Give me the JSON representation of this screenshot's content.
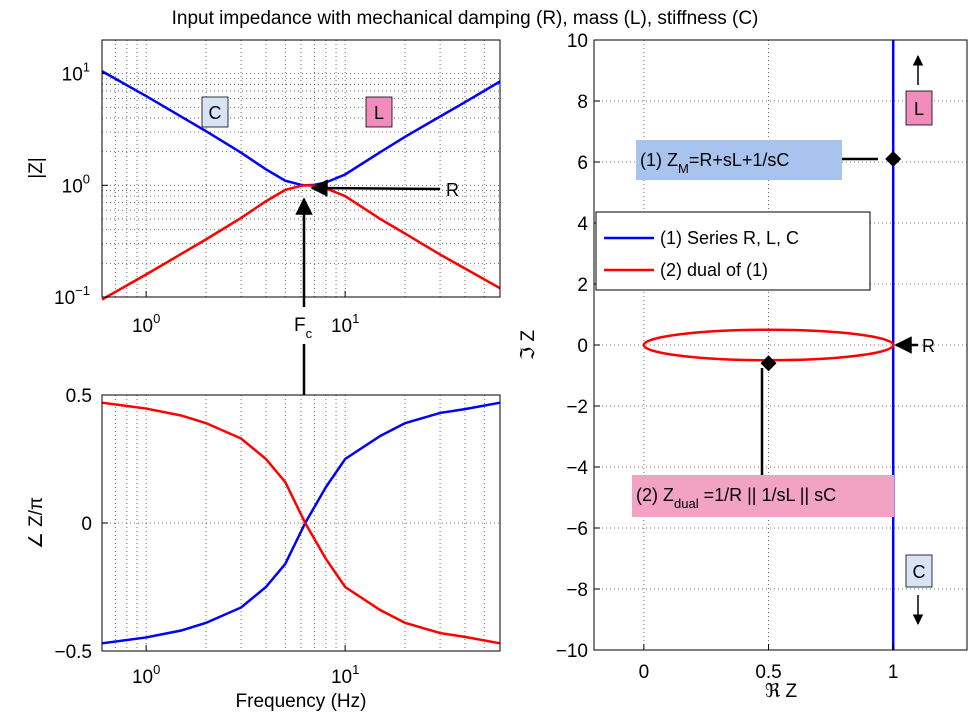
{
  "page": {
    "title": "Input impedance with mechanical damping (R), mass (L), stiffness (C)"
  },
  "colors": {
    "series1": "#0000ff",
    "series2": "#ff0000",
    "label_blue_bg": "#a8c4ee",
    "label_pink_bg": "#f2a2c2",
    "box_C_bg": "#d8e4f6",
    "box_L_bg": "#f28cbc"
  },
  "chart_data": [
    {
      "id": "magnitude",
      "type": "line",
      "xscale": "log",
      "yscale": "log",
      "xlim": [
        0.6,
        60
      ],
      "ylim": [
        0.1,
        20
      ],
      "grid": true,
      "xticks": [
        {
          "value": 1,
          "base": "10",
          "exp": "0"
        },
        {
          "value": 10,
          "base": "10",
          "exp": "1"
        }
      ],
      "yticks": [
        {
          "value": 0.1,
          "base": "10",
          "exp": "−1"
        },
        {
          "value": 1,
          "base": "10",
          "exp": "0"
        },
        {
          "value": 10,
          "base": "10",
          "exp": "1"
        }
      ],
      "ylabel": "|Z|",
      "series": [
        {
          "id": "s1",
          "x": [
            0.6,
            1,
            2,
            3,
            4,
            5,
            6,
            6.3,
            7,
            8,
            10,
            15,
            20,
            30,
            40,
            60
          ],
          "y": [
            10.5,
            6.3,
            3.05,
            1.96,
            1.39,
            1.1,
            1.01,
            1.0,
            1.01,
            1.06,
            1.25,
            1.98,
            2.72,
            4.13,
            5.55,
            8.5
          ]
        },
        {
          "id": "s2",
          "x": [
            0.6,
            1,
            2,
            3,
            4,
            5,
            6,
            6.3,
            7,
            8,
            10,
            15,
            20,
            30,
            40,
            60
          ],
          "y": [
            0.095,
            0.159,
            0.328,
            0.51,
            0.72,
            0.91,
            0.99,
            1.0,
            0.99,
            0.94,
            0.8,
            0.5,
            0.37,
            0.24,
            0.18,
            0.12
          ]
        }
      ],
      "annotations": {
        "C": "C",
        "L": "L",
        "R": "R",
        "Fc_base": "F",
        "Fc_sub": "c",
        "Fc_point": [
          6.3,
          1.0
        ]
      }
    },
    {
      "id": "phase",
      "type": "line",
      "xscale": "log",
      "xlim": [
        0.6,
        60
      ],
      "ylim": [
        -0.5,
        0.5
      ],
      "grid": true,
      "xticks": [
        {
          "value": 1,
          "base": "10",
          "exp": "0"
        },
        {
          "value": 10,
          "base": "10",
          "exp": "1"
        }
      ],
      "yticks": [
        {
          "value": -0.5,
          "label": "−0.5"
        },
        {
          "value": 0,
          "label": "0"
        },
        {
          "value": 0.5,
          "label": "0.5"
        }
      ],
      "xlabel": "Frequency (Hz)",
      "ylabel": "∠ Z/π",
      "series": [
        {
          "id": "s1",
          "x": [
            0.6,
            1,
            1.5,
            2,
            3,
            4,
            5,
            6.3,
            8,
            10,
            15,
            20,
            30,
            40,
            60
          ],
          "y": [
            -0.47,
            -0.447,
            -0.42,
            -0.39,
            -0.33,
            -0.25,
            -0.16,
            0,
            0.14,
            0.25,
            0.34,
            0.39,
            0.43,
            0.445,
            0.47
          ]
        },
        {
          "id": "s2",
          "x": [
            0.6,
            1,
            1.5,
            2,
            3,
            4,
            5,
            6.3,
            8,
            10,
            15,
            20,
            30,
            40,
            60
          ],
          "y": [
            0.47,
            0.447,
            0.42,
            0.39,
            0.33,
            0.25,
            0.16,
            0,
            -0.14,
            -0.25,
            -0.34,
            -0.39,
            -0.43,
            -0.445,
            -0.47
          ]
        }
      ]
    },
    {
      "id": "impedance-plane",
      "type": "line",
      "xlim": [
        -0.2,
        1.3
      ],
      "ylim": [
        -10,
        10
      ],
      "grid": true,
      "xticks": [
        {
          "value": 0,
          "label": "0"
        },
        {
          "value": 0.5,
          "label": "0.5"
        },
        {
          "value": 1,
          "label": "1"
        }
      ],
      "yticks": [
        {
          "value": -10,
          "label": "−10"
        },
        {
          "value": -8,
          "label": "−8"
        },
        {
          "value": -6,
          "label": "−6"
        },
        {
          "value": -4,
          "label": "−4"
        },
        {
          "value": -2,
          "label": "−2"
        },
        {
          "value": 0,
          "label": "0"
        },
        {
          "value": 2,
          "label": "2"
        },
        {
          "value": 4,
          "label": "4"
        },
        {
          "value": 6,
          "label": "6"
        },
        {
          "value": 8,
          "label": "8"
        },
        {
          "value": 10,
          "label": "10"
        }
      ],
      "xlabel": "ℜ Z",
      "ylabel": "ℑ Z",
      "legend": {
        "placement": "upper-right",
        "entries": [
          "(1) Series R, L, C",
          "(2) dual of (1)"
        ]
      },
      "series": [
        {
          "id": "s1",
          "name": "(1) Series R, L, C",
          "x": [
            1,
            1
          ],
          "y": [
            -10,
            10
          ]
        },
        {
          "id": "s2",
          "name": "(2) dual of (1)",
          "ellipse": {
            "cx": 0.5,
            "cy": 0,
            "rx": 0.5,
            "ry": 0.5
          }
        }
      ],
      "markers": [
        {
          "x": 1,
          "y": 6.1
        },
        {
          "x": 0.5,
          "y": -0.6
        }
      ],
      "annotations": {
        "zm_prefix": "(1) Z",
        "zm_sub": "M",
        "zm_rest": "=R+sL+1/sC",
        "zdual_prefix": "(2) Z",
        "zdual_sub": "dual",
        "zdual_rest": " =1/R || 1/sL || sC",
        "L": "L",
        "C": "C",
        "R": "R"
      }
    }
  ]
}
